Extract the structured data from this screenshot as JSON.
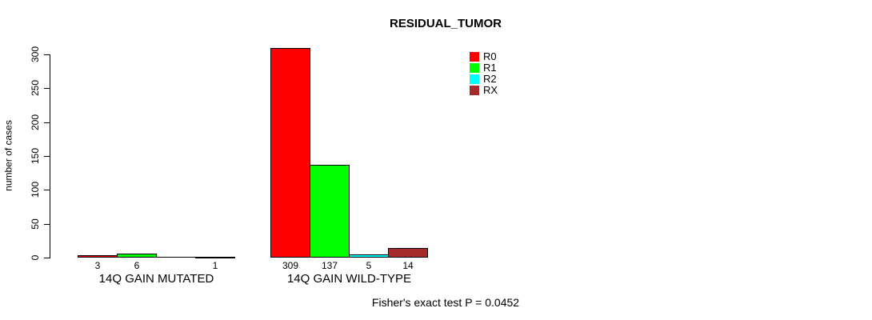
{
  "title": "RESIDUAL_TUMOR",
  "footer": "Fisher's exact test P = 0.0452",
  "chart_data": {
    "type": "bar",
    "title": "RESIDUAL_TUMOR",
    "xlabel": "",
    "ylabel": "number of cases",
    "ylim": [
      0,
      300
    ],
    "yticks": [
      0,
      50,
      100,
      150,
      200,
      250,
      300
    ],
    "grid": false,
    "legend_position": "top-right",
    "background": "#ffffff",
    "text_color": "#000000",
    "series": [
      {
        "name": "R0",
        "color": "#FF0000",
        "values": [
          3,
          309
        ]
      },
      {
        "name": "R1",
        "color": "#00FF00",
        "values": [
          6,
          137
        ]
      },
      {
        "name": "R2",
        "color": "#00FFFF",
        "values": [
          0,
          5
        ]
      },
      {
        "name": "RX",
        "color": "#A52A2A",
        "values": [
          1,
          14
        ]
      }
    ],
    "groups": [
      {
        "label": "14Q GAIN MUTATED",
        "values": [
          3,
          6,
          0,
          1
        ],
        "value_labels": [
          "3",
          "6",
          "",
          "1"
        ]
      },
      {
        "label": "14Q GAIN WILD-TYPE",
        "values": [
          309,
          137,
          5,
          14
        ],
        "value_labels": [
          "309",
          "137",
          "5",
          "14"
        ]
      }
    ],
    "annotation": "Fisher's exact test P = 0.0452"
  }
}
